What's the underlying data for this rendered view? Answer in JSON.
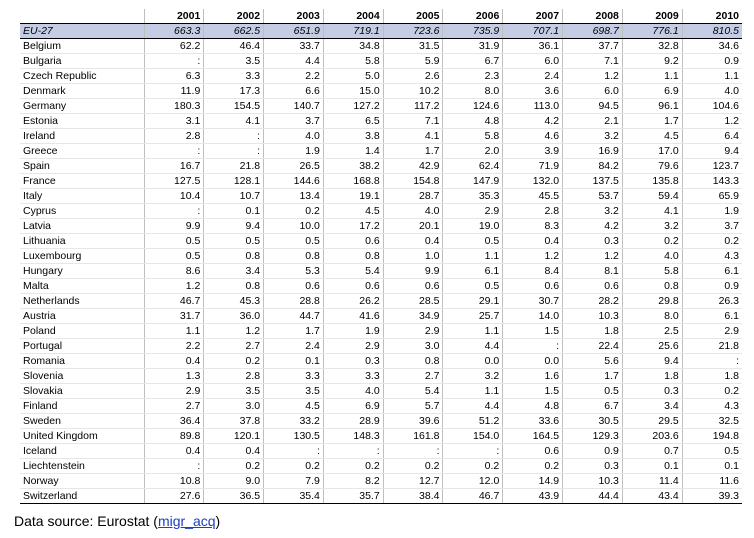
{
  "table": {
    "corner": "",
    "years": [
      "2001",
      "2002",
      "2003",
      "2004",
      "2005",
      "2006",
      "2007",
      "2008",
      "2009",
      "2010"
    ],
    "rows": [
      {
        "country": "EU-27",
        "values": [
          "663.3",
          "662.5",
          "651.9",
          "719.1",
          "723.6",
          "735.9",
          "707.1",
          "698.7",
          "776.1",
          "810.5"
        ]
      },
      {
        "country": "Belgium",
        "values": [
          "62.2",
          "46.4",
          "33.7",
          "34.8",
          "31.5",
          "31.9",
          "36.1",
          "37.7",
          "32.8",
          "34.6"
        ]
      },
      {
        "country": "Bulgaria",
        "values": [
          ":",
          "3.5",
          "4.4",
          "5.8",
          "5.9",
          "6.7",
          "6.0",
          "7.1",
          "9.2",
          "0.9"
        ]
      },
      {
        "country": "Czech Republic",
        "values": [
          "6.3",
          "3.3",
          "2.2",
          "5.0",
          "2.6",
          "2.3",
          "2.4",
          "1.2",
          "1.1",
          "1.1"
        ]
      },
      {
        "country": "Denmark",
        "values": [
          "11.9",
          "17.3",
          "6.6",
          "15.0",
          "10.2",
          "8.0",
          "3.6",
          "6.0",
          "6.9",
          "4.0"
        ]
      },
      {
        "country": "Germany",
        "values": [
          "180.3",
          "154.5",
          "140.7",
          "127.2",
          "117.2",
          "124.6",
          "113.0",
          "94.5",
          "96.1",
          "104.6"
        ]
      },
      {
        "country": "Estonia",
        "values": [
          "3.1",
          "4.1",
          "3.7",
          "6.5",
          "7.1",
          "4.8",
          "4.2",
          "2.1",
          "1.7",
          "1.2"
        ]
      },
      {
        "country": "Ireland",
        "values": [
          "2.8",
          ":",
          "4.0",
          "3.8",
          "4.1",
          "5.8",
          "4.6",
          "3.2",
          "4.5",
          "6.4"
        ]
      },
      {
        "country": "Greece",
        "values": [
          ":",
          ":",
          "1.9",
          "1.4",
          "1.7",
          "2.0",
          "3.9",
          "16.9",
          "17.0",
          "9.4"
        ]
      },
      {
        "country": "Spain",
        "values": [
          "16.7",
          "21.8",
          "26.5",
          "38.2",
          "42.9",
          "62.4",
          "71.9",
          "84.2",
          "79.6",
          "123.7"
        ]
      },
      {
        "country": "France",
        "values": [
          "127.5",
          "128.1",
          "144.6",
          "168.8",
          "154.8",
          "147.9",
          "132.0",
          "137.5",
          "135.8",
          "143.3"
        ]
      },
      {
        "country": "Italy",
        "values": [
          "10.4",
          "10.7",
          "13.4",
          "19.1",
          "28.7",
          "35.3",
          "45.5",
          "53.7",
          "59.4",
          "65.9"
        ]
      },
      {
        "country": "Cyprus",
        "values": [
          ":",
          "0.1",
          "0.2",
          "4.5",
          "4.0",
          "2.9",
          "2.8",
          "3.2",
          "4.1",
          "1.9"
        ]
      },
      {
        "country": "Latvia",
        "values": [
          "9.9",
          "9.4",
          "10.0",
          "17.2",
          "20.1",
          "19.0",
          "8.3",
          "4.2",
          "3.2",
          "3.7"
        ]
      },
      {
        "country": "Lithuania",
        "values": [
          "0.5",
          "0.5",
          "0.5",
          "0.6",
          "0.4",
          "0.5",
          "0.4",
          "0.3",
          "0.2",
          "0.2"
        ]
      },
      {
        "country": "Luxembourg",
        "values": [
          "0.5",
          "0.8",
          "0.8",
          "0.8",
          "1.0",
          "1.1",
          "1.2",
          "1.2",
          "4.0",
          "4.3"
        ]
      },
      {
        "country": "Hungary",
        "values": [
          "8.6",
          "3.4",
          "5.3",
          "5.4",
          "9.9",
          "6.1",
          "8.4",
          "8.1",
          "5.8",
          "6.1"
        ]
      },
      {
        "country": "Malta",
        "values": [
          "1.2",
          "0.8",
          "0.6",
          "0.6",
          "0.6",
          "0.5",
          "0.6",
          "0.6",
          "0.8",
          "0.9"
        ]
      },
      {
        "country": "Netherlands",
        "values": [
          "46.7",
          "45.3",
          "28.8",
          "26.2",
          "28.5",
          "29.1",
          "30.7",
          "28.2",
          "29.8",
          "26.3"
        ]
      },
      {
        "country": "Austria",
        "values": [
          "31.7",
          "36.0",
          "44.7",
          "41.6",
          "34.9",
          "25.7",
          "14.0",
          "10.3",
          "8.0",
          "6.1"
        ]
      },
      {
        "country": "Poland",
        "values": [
          "1.1",
          "1.2",
          "1.7",
          "1.9",
          "2.9",
          "1.1",
          "1.5",
          "1.8",
          "2.5",
          "2.9"
        ]
      },
      {
        "country": "Portugal",
        "values": [
          "2.2",
          "2.7",
          "2.4",
          "2.9",
          "3.0",
          "4.4",
          ":",
          "22.4",
          "25.6",
          "21.8"
        ]
      },
      {
        "country": "Romania",
        "values": [
          "0.4",
          "0.2",
          "0.1",
          "0.3",
          "0.8",
          "0.0",
          "0.0",
          "5.6",
          "9.4",
          ":"
        ]
      },
      {
        "country": "Slovenia",
        "values": [
          "1.3",
          "2.8",
          "3.3",
          "3.3",
          "2.7",
          "3.2",
          "1.6",
          "1.7",
          "1.8",
          "1.8"
        ]
      },
      {
        "country": "Slovakia",
        "values": [
          "2.9",
          "3.5",
          "3.5",
          "4.0",
          "5.4",
          "1.1",
          "1.5",
          "0.5",
          "0.3",
          "0.2"
        ]
      },
      {
        "country": "Finland",
        "values": [
          "2.7",
          "3.0",
          "4.5",
          "6.9",
          "5.7",
          "4.4",
          "4.8",
          "6.7",
          "3.4",
          "4.3"
        ]
      },
      {
        "country": "Sweden",
        "values": [
          "36.4",
          "37.8",
          "33.2",
          "28.9",
          "39.6",
          "51.2",
          "33.6",
          "30.5",
          "29.5",
          "32.5"
        ]
      },
      {
        "country": "United Kingdom",
        "values": [
          "89.8",
          "120.1",
          "130.5",
          "148.3",
          "161.8",
          "154.0",
          "164.5",
          "129.3",
          "203.6",
          "194.8"
        ]
      },
      {
        "country": "Iceland",
        "values": [
          "0.4",
          "0.4",
          ":",
          ":",
          ":",
          ":",
          "0.6",
          "0.9",
          "0.7",
          "0.5"
        ]
      },
      {
        "country": "Liechtenstein",
        "values": [
          ":",
          "0.2",
          "0.2",
          "0.2",
          "0.2",
          "0.2",
          "0.2",
          "0.3",
          "0.1",
          "0.1"
        ]
      },
      {
        "country": "Norway",
        "values": [
          "10.8",
          "9.0",
          "7.9",
          "8.2",
          "12.7",
          "12.0",
          "14.9",
          "10.3",
          "11.4",
          "11.6"
        ]
      },
      {
        "country": "Switzerland",
        "values": [
          "27.6",
          "36.5",
          "35.4",
          "35.7",
          "38.4",
          "46.7",
          "43.9",
          "44.4",
          "43.4",
          "39.3"
        ]
      }
    ]
  },
  "source": {
    "prefix": "Data source: Eurostat (",
    "link_label": "migr_acq",
    "suffix": ")"
  },
  "colors": {
    "eu_row_background": "#c5cde4",
    "link": "#1a3fc4"
  }
}
